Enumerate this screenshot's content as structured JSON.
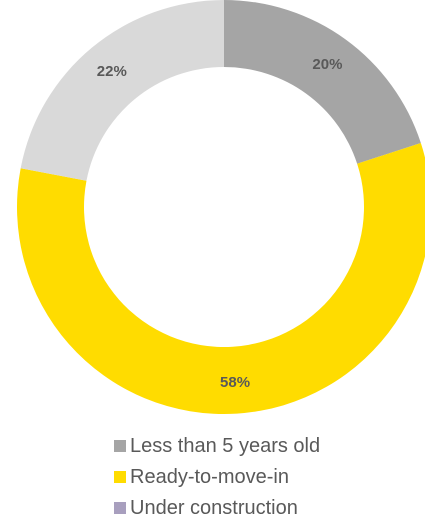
{
  "chart_data": {
    "type": "donut",
    "title": "",
    "slices": [
      {
        "label": "Less than 5 years old",
        "value": 20,
        "value_label": "20%",
        "color": "#A5A5A5"
      },
      {
        "label": "Ready-to-move-in",
        "value": 58,
        "value_label": "58%",
        "color": "#FFDC00"
      },
      {
        "label": "Under construction",
        "value": 22,
        "value_label": "22%",
        "color": "#D9D9D9"
      }
    ],
    "legend": {
      "placement": "bottom",
      "entries": [
        {
          "label": "Less than 5 years old",
          "color": "#A5A5A5"
        },
        {
          "label": "Ready-to-move-in",
          "color": "#FFDC00"
        },
        {
          "label": "Under construction",
          "color": "#A89FBE"
        }
      ]
    }
  }
}
